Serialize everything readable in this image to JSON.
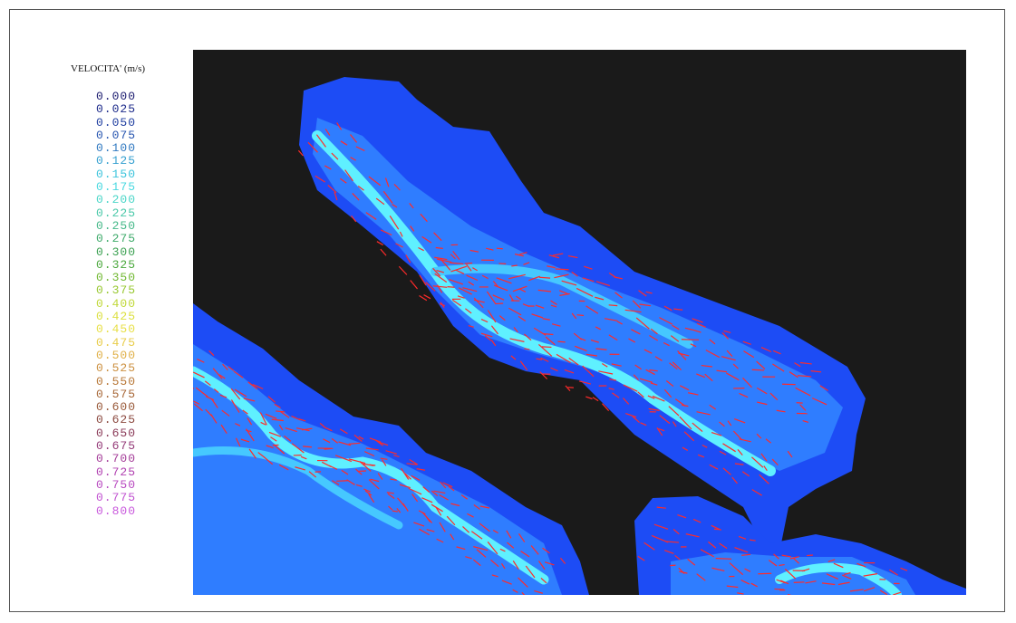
{
  "legend": {
    "title": "VELOCITA' (m/s)",
    "levels": [
      {
        "label": "0.000",
        "color": "#1a1a6e"
      },
      {
        "label": "0.025",
        "color": "#1c2a8a"
      },
      {
        "label": "0.050",
        "color": "#1f3ea0"
      },
      {
        "label": "0.075",
        "color": "#2755b0"
      },
      {
        "label": "0.100",
        "color": "#2f78c0"
      },
      {
        "label": "0.125",
        "color": "#35a0d0"
      },
      {
        "label": "0.150",
        "color": "#3cc4dc"
      },
      {
        "label": "0.175",
        "color": "#48d8e0"
      },
      {
        "label": "0.200",
        "color": "#4ad6c8"
      },
      {
        "label": "0.225",
        "color": "#48c8a8"
      },
      {
        "label": "0.250",
        "color": "#44b888"
      },
      {
        "label": "0.275",
        "color": "#3eaa6a"
      },
      {
        "label": "0.300",
        "color": "#3aa050"
      },
      {
        "label": "0.325",
        "color": "#4aa83c"
      },
      {
        "label": "0.350",
        "color": "#70b830"
      },
      {
        "label": "0.375",
        "color": "#98c830"
      },
      {
        "label": "0.400",
        "color": "#c0d838"
      },
      {
        "label": "0.425",
        "color": "#dce040"
      },
      {
        "label": "0.450",
        "color": "#e8e048"
      },
      {
        "label": "0.475",
        "color": "#e8cc48"
      },
      {
        "label": "0.500",
        "color": "#e0b048"
      },
      {
        "label": "0.525",
        "color": "#cc9040"
      },
      {
        "label": "0.550",
        "color": "#b87838"
      },
      {
        "label": "0.575",
        "color": "#a86838"
      },
      {
        "label": "0.600",
        "color": "#985838"
      },
      {
        "label": "0.625",
        "color": "#8c4a40"
      },
      {
        "label": "0.650",
        "color": "#8a3a58"
      },
      {
        "label": "0.675",
        "color": "#943a78"
      },
      {
        "label": "0.700",
        "color": "#a43c98"
      },
      {
        "label": "0.725",
        "color": "#b040b0"
      },
      {
        "label": "0.750",
        "color": "#b848c0"
      },
      {
        "label": "0.775",
        "color": "#c050d0"
      },
      {
        "label": "0.800",
        "color": "#c858dc"
      }
    ]
  }
}
